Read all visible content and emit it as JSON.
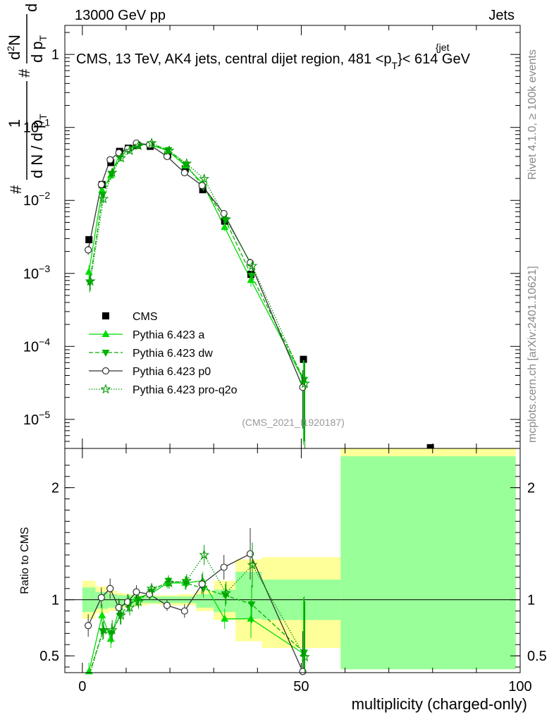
{
  "header": {
    "left": "13000 GeV pp",
    "right": "Jets"
  },
  "side_labels": {
    "rivet": "Rivet 4.1.0, ≥ 100k events",
    "mcplots": "mcplots.cern.ch [arXiv:2401.10621]"
  },
  "chart_data": [
    {
      "type": "line",
      "name": "main",
      "scale": "log",
      "title": "CMS, 13 TeV, AK4 jets, central dijet region, 481 <p",
      "title_sup": "{jet",
      "title_sub": "T",
      "title_end": "}< 614 GeV",
      "ylabel": {
        "lead": "#",
        "frac_num": "1",
        "frac_den_a": "d N / d p",
        "frac_den_b": "T",
        "hash": "#",
        "d2N": "d",
        "sup2": "2",
        "N": "N",
        "dp": "d p",
        "T": "T",
        "dlambda": "d λ"
      },
      "ylim": [
        4e-06,
        2.5
      ],
      "xlim": [
        -4,
        100
      ],
      "yticks": [
        {
          "value": 1,
          "label": "1"
        },
        {
          "value": 0.1,
          "label": "10",
          "exp": "−1"
        },
        {
          "value": 0.01,
          "label": "10",
          "exp": "−2"
        },
        {
          "value": 0.001,
          "label": "10",
          "exp": "−3"
        },
        {
          "value": 0.0001,
          "label": "10",
          "exp": "−4"
        },
        {
          "value": 1e-05,
          "label": "10",
          "exp": "−5"
        }
      ],
      "watermark": "(CMS_2021_I1920187)",
      "legend": {
        "position": "middle-left",
        "entries": [
          "CMS",
          "Pythia 6.423 a",
          "Pythia 6.423 dw",
          "Pythia 6.423 p0",
          "Pythia 6.423 pro-q2o"
        ]
      },
      "x": [
        1.5,
        4.5,
        6.5,
        8.5,
        10.5,
        12.5,
        15.5,
        19.5,
        23.5,
        27.5,
        32.5,
        38.5,
        50.5,
        79.5
      ],
      "series": [
        {
          "name": "CMS",
          "values": [
            0.0029,
            0.0165,
            0.033,
            0.047,
            0.052,
            0.057,
            0.055,
            0.042,
            0.027,
            0.014,
            0.0052,
            0.00097,
            6.65e-05,
            4.1e-06
          ]
        },
        {
          "name": "Pythia 6.423 a",
          "values": [
            0.00105,
            0.0138,
            0.022,
            0.043,
            0.051,
            0.058,
            0.058,
            0.048,
            0.03,
            0.017,
            0.0043,
            0.00081,
            3.45e-05,
            null
          ],
          "errors": [
            0.00025,
            0.0015,
            0.003,
            0.004,
            0.004,
            0.004,
            0.003,
            0.003,
            0.002,
            0.0012,
            0.0005,
            0.00015,
            3e-05,
            null
          ]
        },
        {
          "name": "Pythia 6.423 dw",
          "values": [
            0.00075,
            0.012,
            0.023,
            0.04,
            0.05,
            0.057,
            0.059,
            0.049,
            0.031,
            0.0153,
            0.0054,
            0.00093,
            3.5e-05,
            null
          ],
          "errors": [
            0.0002,
            0.0013,
            0.003,
            0.004,
            0.004,
            0.004,
            0.003,
            0.003,
            0.002,
            0.0012,
            0.0006,
            0.00016,
            3e-05,
            null
          ]
        },
        {
          "name": "Pythia 6.423 p0",
          "values": [
            0.0021,
            0.0165,
            0.036,
            0.045,
            0.051,
            0.061,
            0.058,
            0.04,
            0.024,
            0.016,
            0.0066,
            0.0014,
            2.75e-05,
            null
          ],
          "errors": [
            0.0003,
            0.0015,
            0.003,
            0.004,
            0.004,
            0.004,
            0.003,
            0.003,
            0.002,
            0.0012,
            0.0006,
            0.0002,
            2e-05,
            null
          ]
        },
        {
          "name": "Pythia 6.423 pro-q2o",
          "values": [
            0.00078,
            0.0105,
            0.024,
            0.038,
            0.048,
            0.056,
            0.061,
            0.048,
            0.032,
            0.0197,
            0.0055,
            0.00127,
            3.1e-05,
            null
          ],
          "errors": [
            0.0002,
            0.0013,
            0.003,
            0.004,
            0.004,
            0.004,
            0.003,
            0.003,
            0.002,
            0.0012,
            0.0006,
            0.0002,
            3e-05,
            null
          ]
        }
      ]
    },
    {
      "type": "line",
      "name": "ratio",
      "ylabel": "Ratio to CMS",
      "xlabel": "multiplicity (charged-only)",
      "ylim": [
        0.35,
        2.35
      ],
      "xlim": [
        -4,
        100
      ],
      "xticks": [
        {
          "value": 0,
          "label": "0"
        },
        {
          "value": 50,
          "label": "50"
        },
        {
          "value": 100,
          "label": "100"
        }
      ],
      "yticks": [
        {
          "value": 0.5,
          "label": "0.5"
        },
        {
          "value": 1,
          "label": "1"
        },
        {
          "value": 2,
          "label": "2"
        }
      ],
      "bands": [
        {
          "x0": 0,
          "x1": 3,
          "inner": [
            0.89,
            1.11
          ],
          "outer": [
            0.83,
            1.17
          ]
        },
        {
          "x0": 3,
          "x1": 6,
          "inner": [
            0.92,
            1.07
          ],
          "outer": [
            0.88,
            1.12
          ]
        },
        {
          "x0": 6,
          "x1": 8,
          "inner": [
            0.93,
            1.05
          ],
          "outer": [
            0.9,
            1.08
          ]
        },
        {
          "x0": 8,
          "x1": 10,
          "inner": [
            0.95,
            1.04
          ],
          "outer": [
            0.93,
            1.06
          ]
        },
        {
          "x0": 10,
          "x1": 12,
          "inner": [
            0.96,
            1.04
          ],
          "outer": [
            0.94,
            1.05
          ]
        },
        {
          "x0": 12,
          "x1": 15,
          "inner": [
            0.97,
            1.03
          ],
          "outer": [
            0.95,
            1.04
          ]
        },
        {
          "x0": 15,
          "x1": 18,
          "inner": [
            0.97,
            1.03
          ],
          "outer": [
            0.96,
            1.04
          ]
        },
        {
          "x0": 18,
          "x1": 22,
          "inner": [
            0.97,
            1.03
          ],
          "outer": [
            0.95,
            1.04
          ]
        },
        {
          "x0": 22,
          "x1": 26,
          "inner": [
            0.97,
            1.03
          ],
          "outer": [
            0.95,
            1.05
          ]
        },
        {
          "x0": 26,
          "x1": 30,
          "inner": [
            0.93,
            1.05
          ],
          "outer": [
            0.9,
            1.08
          ]
        },
        {
          "x0": 30,
          "x1": 35,
          "inner": [
            0.89,
            1.09
          ],
          "outer": [
            0.82,
            1.17
          ]
        },
        {
          "x0": 35,
          "x1": 41,
          "inner": [
            0.83,
            1.25
          ],
          "outer": [
            0.63,
            1.36
          ]
        },
        {
          "x0": 41,
          "x1": 59,
          "inner": [
            0.82,
            1.18
          ],
          "outer": [
            0.57,
            1.38
          ]
        },
        {
          "x0": 59,
          "x1": 99,
          "inner": [
            0.38,
            2.28
          ],
          "outer": [
            0.38,
            2.35
          ]
        }
      ],
      "series": [
        {
          "name": "Pythia 6.423 a",
          "values": [
            0.36,
            0.86,
            0.65,
            0.93,
            0.98,
            1.02,
            1.05,
            1.15,
            1.15,
            1.17,
            0.83,
            0.83,
            0.52,
            null
          ],
          "errors": [
            0.08,
            0.1,
            0.08,
            0.08,
            0.07,
            0.06,
            0.05,
            0.05,
            0.06,
            0.08,
            0.09,
            0.17,
            0.5,
            null
          ]
        },
        {
          "name": "Pythia 6.423 dw",
          "values": [
            0.26,
            0.72,
            0.7,
            0.86,
            0.96,
            1.0,
            1.07,
            1.17,
            1.15,
            1.1,
            1.04,
            0.96,
            0.53,
            null
          ],
          "errors": [
            0.07,
            0.08,
            0.09,
            0.08,
            0.07,
            0.06,
            0.05,
            0.05,
            0.06,
            0.08,
            0.1,
            0.17,
            0.5,
            null
          ]
        },
        {
          "name": "Pythia 6.423 p0",
          "values": [
            0.77,
            1.02,
            1.1,
            0.93,
            0.98,
            1.07,
            1.05,
            0.95,
            0.9,
            1.14,
            1.29,
            1.41,
            0.36,
            null
          ],
          "errors": [
            0.1,
            0.09,
            0.09,
            0.08,
            0.07,
            0.06,
            0.05,
            0.05,
            0.06,
            0.09,
            0.11,
            0.23,
            0.36,
            null
          ]
        },
        {
          "name": "Pythia 6.423 pro-q2o",
          "values": [
            0.27,
            0.73,
            0.73,
            0.86,
            0.93,
            0.98,
            1.1,
            1.15,
            1.17,
            1.4,
            1.06,
            1.31,
            0.49,
            null
          ],
          "errors": [
            0.07,
            0.08,
            0.09,
            0.08,
            0.07,
            0.06,
            0.05,
            0.05,
            0.06,
            0.09,
            0.1,
            0.2,
            0.5,
            null
          ]
        }
      ]
    }
  ],
  "colors": {
    "cms": "#000000",
    "a": "#00dd00",
    "dw": "#00b300",
    "p0": "#333333",
    "pro": "#009900",
    "band_inner": "#99ff99",
    "band_outer": "#ffff99"
  }
}
